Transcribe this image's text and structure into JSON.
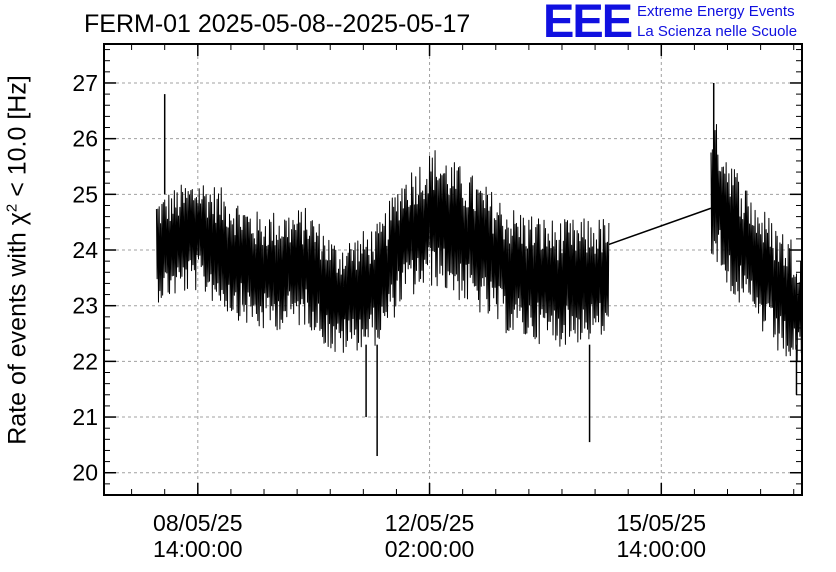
{
  "chart_data": {
    "type": "line",
    "title": "FERM-01 2025-05-08--2025-05-17",
    "ylabel": {
      "prefix": "Rate of events with ",
      "chi": "χ",
      "exponent": "2",
      "suffix": " < 10.0 [Hz]"
    },
    "xlabel": "",
    "ylim": [
      19.6,
      27.7
    ],
    "y_ticks": [
      20,
      21,
      22,
      23,
      24,
      25,
      26,
      27
    ],
    "x_range": [
      "2025-05-07T04:00:00",
      "2025-05-17T17:00:00"
    ],
    "x_ticks": [
      {
        "time": "2025-05-08T14:00:00",
        "date_label": "08/05/25",
        "time_label": "14:00:00"
      },
      {
        "time": "2025-05-12T02:00:00",
        "date_label": "12/05/25",
        "time_label": "02:00:00"
      },
      {
        "time": "2025-05-15T14:00:00",
        "date_label": "15/05/25",
        "time_label": "14:00:00"
      }
    ],
    "grid": true,
    "series": [
      {
        "color": "#000000",
        "segments": [
          {
            "start": "2025-05-07T23:00:00",
            "end": "2025-05-14T19:00:00",
            "trend": [
              [
                "2025-05-07T23:00:00",
                24.0
              ],
              [
                "2025-05-08T14:00:00",
                24.3
              ],
              [
                "2025-05-09T12:00:00",
                23.6
              ],
              [
                "2025-05-10T06:00:00",
                23.7
              ],
              [
                "2025-05-10T16:00:00",
                23.1
              ],
              [
                "2025-05-11T08:00:00",
                23.4
              ],
              [
                "2025-05-11T16:00:00",
                24.2
              ],
              [
                "2025-05-12T04:00:00",
                24.6
              ],
              [
                "2025-05-12T16:00:00",
                24.2
              ],
              [
                "2025-05-13T08:00:00",
                23.6
              ],
              [
                "2025-05-14T00:00:00",
                23.4
              ],
              [
                "2025-05-14T19:00:00",
                23.5
              ]
            ],
            "spread": [
              [
                "2025-05-07T23:00:00",
                0.95
              ],
              [
                "2025-05-09T00:00:00",
                1.1
              ],
              [
                "2025-05-11T00:00:00",
                1.05
              ],
              [
                "2025-05-12T04:00:00",
                1.25
              ],
              [
                "2025-05-14T19:00:00",
                1.1
              ]
            ]
          },
          {
            "start": "2025-05-16T08:00:00",
            "end": "2025-05-17T17:00:00",
            "trend": [
              [
                "2025-05-16T08:00:00",
                25.2
              ],
              [
                "2025-05-16T18:00:00",
                24.2
              ],
              [
                "2025-05-17T06:00:00",
                23.4
              ],
              [
                "2025-05-17T17:00:00",
                22.9
              ]
            ],
            "spread": [
              [
                "2025-05-16T08:00:00",
                1.3
              ],
              [
                "2025-05-17T00:00:00",
                1.15
              ],
              [
                "2025-05-17T17:00:00",
                1.2
              ]
            ]
          }
        ],
        "gap_connector": [
          [
            "2025-05-14T19:00:00",
            24.1
          ],
          [
            "2025-05-16T08:00:00",
            24.75
          ]
        ],
        "extremes": [
          [
            "2025-05-08T02:00:00",
            26.8
          ],
          [
            "2025-05-16T09:00:00",
            27.0
          ],
          [
            "2025-05-11T07:00:00",
            20.3
          ],
          [
            "2025-05-14T12:00:00",
            20.55
          ],
          [
            "2025-05-11T03:00:00",
            21.0
          ],
          [
            "2025-05-17T15:00:00",
            21.4
          ]
        ]
      }
    ]
  },
  "logo": {
    "mark": "EEE",
    "line1": "Extreme Energy Events",
    "line2": "La Scienza nelle Scuole",
    "color": "#1010e0"
  },
  "colors": {
    "grid": "#a0a0a0",
    "axes": "#000000",
    "data": "#000000"
  }
}
